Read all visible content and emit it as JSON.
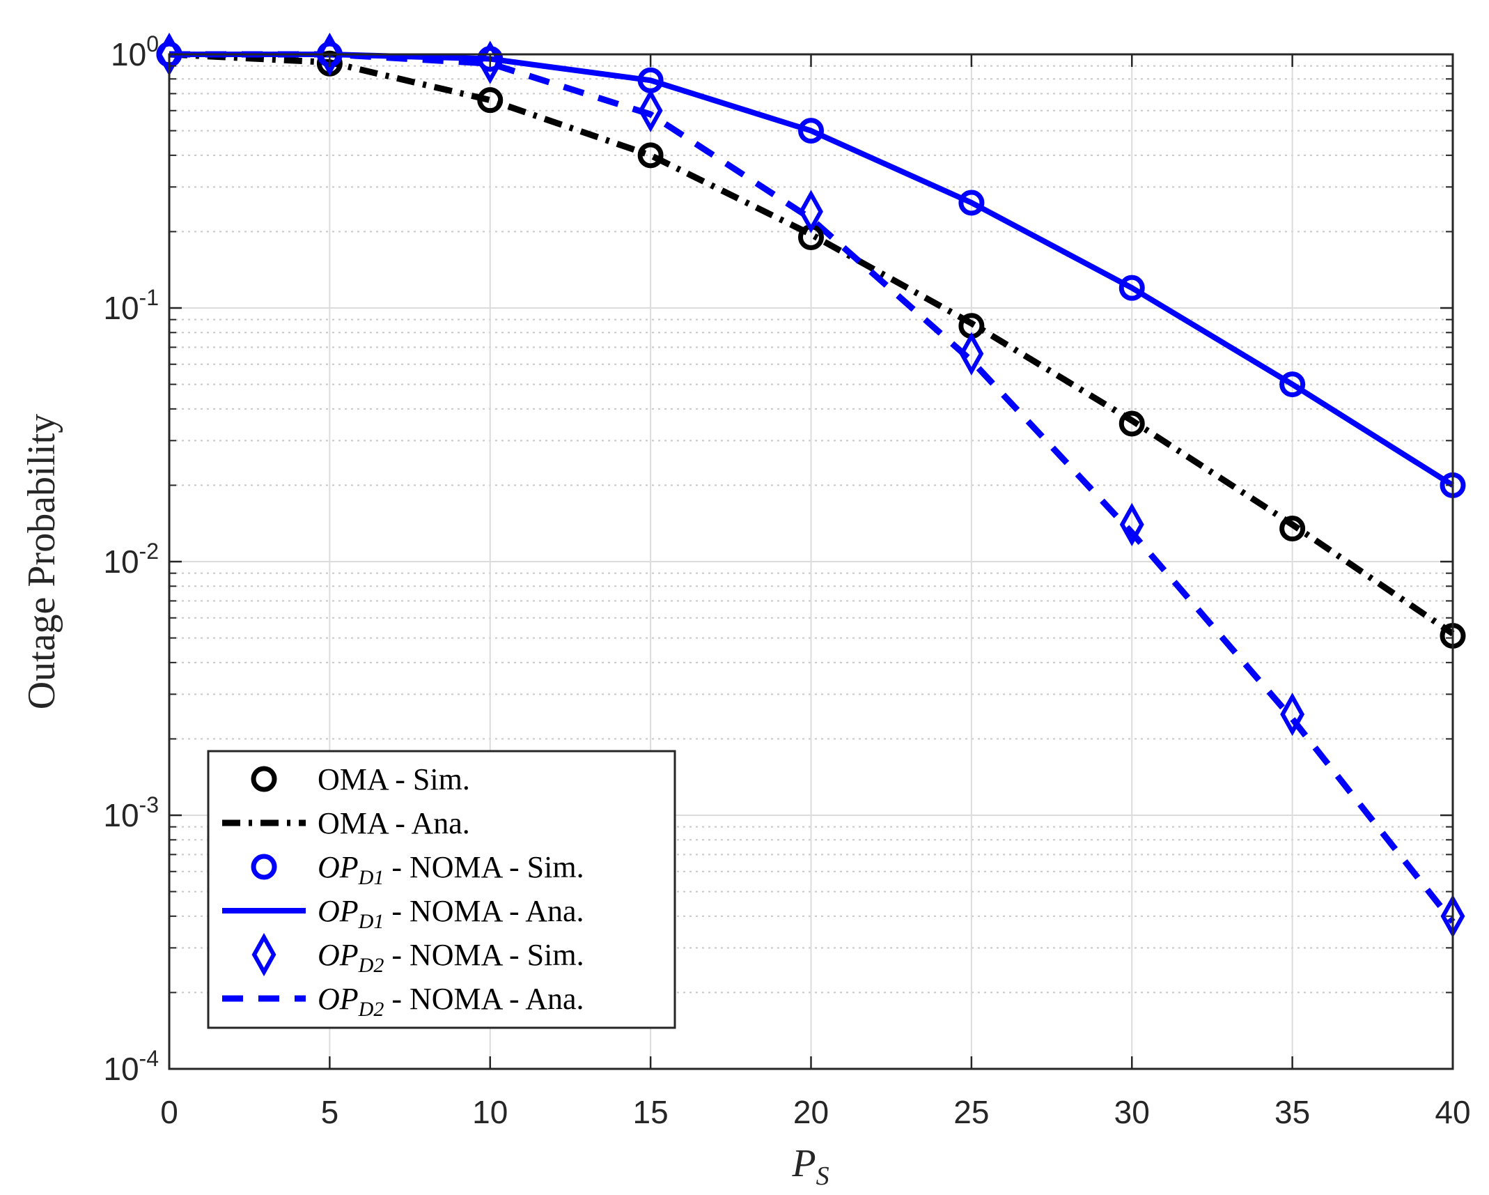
{
  "chart_data": {
    "type": "line",
    "title": "",
    "xlabel": "P",
    "xlabel_sub": "S",
    "ylabel": "Outage Probability",
    "xlim": [
      0,
      40
    ],
    "ylim": [
      0.0001,
      1
    ],
    "yscale": "log",
    "grid": true,
    "minor_grid": true,
    "legend_position": "bottom-left",
    "x_ticks": [
      0,
      5,
      10,
      15,
      20,
      25,
      30,
      35,
      40
    ],
    "x_tick_labels": [
      "0",
      "5",
      "10",
      "15",
      "20",
      "25",
      "30",
      "35",
      "40"
    ],
    "y_ticks": [
      0.0001,
      0.001,
      0.01,
      0.1,
      1
    ],
    "y_tick_labels": [
      {
        "base": "10",
        "exp": "-4"
      },
      {
        "base": "10",
        "exp": "-3"
      },
      {
        "base": "10",
        "exp": "-2"
      },
      {
        "base": "10",
        "exp": "-1"
      },
      {
        "base": "10",
        "exp": "0"
      }
    ],
    "x": [
      0,
      5,
      10,
      15,
      20,
      25,
      30,
      35,
      40
    ],
    "series": [
      {
        "name": "OMA - Sim.",
        "legend": {
          "pre": "",
          "sub": "",
          "post": "OMA - Sim."
        },
        "color": "#000000",
        "line": "none",
        "marker": "circle",
        "values": [
          1.0,
          0.92,
          0.66,
          0.4,
          0.19,
          0.085,
          0.035,
          0.0135,
          0.0051
        ]
      },
      {
        "name": "OMA - Ana.",
        "legend": {
          "pre": "",
          "sub": "",
          "post": "OMA - Ana."
        },
        "color": "#000000",
        "line": "dashdot",
        "marker": "none",
        "values": [
          1.0,
          0.93,
          0.66,
          0.4,
          0.195,
          0.087,
          0.036,
          0.014,
          0.0052
        ]
      },
      {
        "name": "OP_D1 - NOMA - Sim.",
        "legend": {
          "pre": "OP",
          "sub": "D1",
          "post": " - NOMA - Sim."
        },
        "color": "#0000ff",
        "line": "none",
        "marker": "circle",
        "values": [
          1.0,
          1.0,
          0.96,
          0.79,
          0.5,
          0.26,
          0.12,
          0.05,
          0.02
        ]
      },
      {
        "name": "OP_D1 - NOMA - Ana.",
        "legend": {
          "pre": "OP",
          "sub": "D1",
          "post": " - NOMA - Ana."
        },
        "color": "#0000ff",
        "line": "solid",
        "marker": "none",
        "values": [
          1.0,
          1.0,
          0.96,
          0.79,
          0.5,
          0.26,
          0.12,
          0.05,
          0.02
        ]
      },
      {
        "name": "OP_D2 - NOMA - Sim.",
        "legend": {
          "pre": "OP",
          "sub": "D2",
          "post": " - NOMA - Sim."
        },
        "color": "#0000ff",
        "line": "none",
        "marker": "diamond",
        "values": [
          1.0,
          1.0,
          0.93,
          0.6,
          0.24,
          0.066,
          0.014,
          0.0025,
          0.0004
        ]
      },
      {
        "name": "OP_D2 - NOMA - Ana.",
        "legend": {
          "pre": "OP",
          "sub": "D2",
          "post": " - NOMA - Ana."
        },
        "color": "#0000ff",
        "line": "dashed",
        "marker": "none",
        "values": [
          1.0,
          1.0,
          0.92,
          0.58,
          0.225,
          0.062,
          0.013,
          0.0024,
          0.00038
        ]
      }
    ]
  }
}
